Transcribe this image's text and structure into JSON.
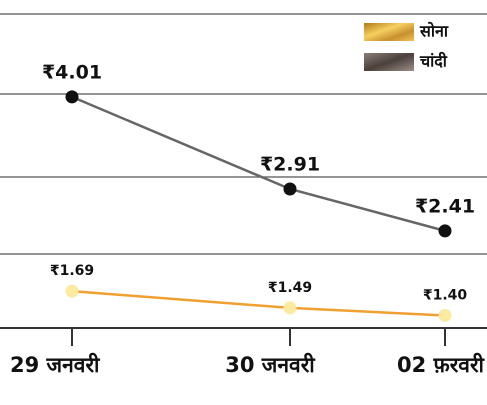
{
  "chart_data": {
    "type": "line",
    "categories": [
      "29 जनवरी",
      "30 जनवरी",
      "02 फ़रवरी"
    ],
    "series": [
      {
        "name": "सोना",
        "color": "#f0a030",
        "marker_color": "#fde9a0",
        "values": [
          1.69,
          1.49,
          1.4
        ],
        "value_labels": [
          "₹1.69",
          "₹1.49",
          "₹1.40"
        ]
      },
      {
        "name": "चांदी",
        "color": "#666666",
        "marker_color": "#111111",
        "values": [
          4.01,
          2.91,
          2.41
        ],
        "value_labels": [
          "₹4.01",
          "₹2.91",
          "₹2.41"
        ]
      }
    ],
    "ylim": [
      1.25,
      5
    ],
    "grid": true,
    "legend": "upper right"
  }
}
